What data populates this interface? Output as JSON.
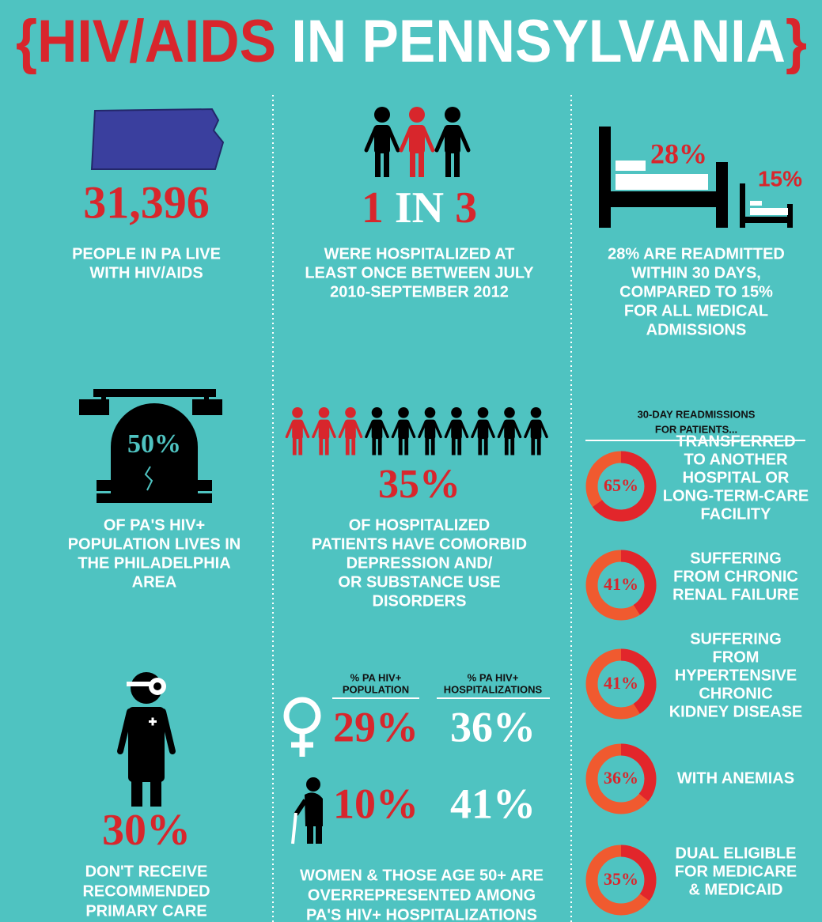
{
  "title": {
    "open": "{",
    "highlight": "HIV/AIDS",
    "rest": "IN PENNSYLVANIA",
    "close": "}"
  },
  "people": {
    "figure": "31,396",
    "text": [
      "PEOPLE IN PA LIVE",
      "WITH HIV/AIDS"
    ]
  },
  "hospitalized": {
    "figure_parts": [
      "1",
      "IN",
      "3"
    ],
    "text": [
      "WERE HOSPITALIZED AT",
      "LEAST ONCE BETWEEN JULY",
      "2010-SEPTEMBER 2012"
    ]
  },
  "readmitted": {
    "bed_labels": [
      "28%",
      "15%"
    ],
    "text": [
      "28% ARE READMITTED",
      "WITHIN 30 DAYS,",
      "COMPARED TO 15%",
      "FOR ALL MEDICAL",
      "ADMISSIONS"
    ]
  },
  "philadelphia": {
    "figure": "50%",
    "text": [
      "OF PA'S HIV+",
      "POPULATION LIVES IN",
      "THE PHILADELPHIA",
      "AREA"
    ]
  },
  "comorbid": {
    "figure": "35%",
    "text": [
      "OF HOSPITALIZED",
      "PATIENTS HAVE COMORBID",
      "DEPRESSION AND/",
      "OR SUBSTANCE USE",
      "DISORDERS"
    ]
  },
  "primary_care": {
    "figure": "30%",
    "text": [
      "DON'T RECEIVE",
      "RECOMMENDED",
      "PRIMARY CARE"
    ]
  },
  "demographics": {
    "headers": [
      [
        "% PA HIV+",
        "POPULATION"
      ],
      [
        "% PA HIV+",
        "HOSPITALIZATIONS"
      ]
    ],
    "rows": [
      [
        "29%",
        "36%"
      ],
      [
        "10%",
        "41%"
      ]
    ],
    "text": [
      "WOMEN & THOSE AGE 50+ ARE",
      "OVERREPRESENTED AMONG",
      "PA'S HIV+ HOSPITALIZATIONS"
    ]
  },
  "readmissions": {
    "heading": [
      "30-DAY READMISSIONS",
      "FOR PATIENTS..."
    ],
    "items": [
      {
        "value": 65,
        "label": "65%",
        "text": [
          "TRANSFERRED",
          "TO ANOTHER",
          "HOSPITAL OR",
          "LONG-TERM-CARE",
          "FACILITY"
        ]
      },
      {
        "value": 41,
        "label": "41%",
        "text": [
          "SUFFERING",
          "FROM CHRONIC",
          "RENAL FAILURE"
        ]
      },
      {
        "value": 41,
        "label": "41%",
        "text": [
          "SUFFERING",
          "FROM",
          "HYPERTENSIVE",
          "CHRONIC",
          "KIDNEY DISEASE"
        ]
      },
      {
        "value": 36,
        "label": "36%",
        "text": [
          "WITH ANEMIAS"
        ]
      },
      {
        "value": 35,
        "label": "35%",
        "text": [
          "DUAL ELIGIBLE",
          "FOR MEDICARE",
          "& MEDICAID"
        ]
      }
    ]
  }
}
